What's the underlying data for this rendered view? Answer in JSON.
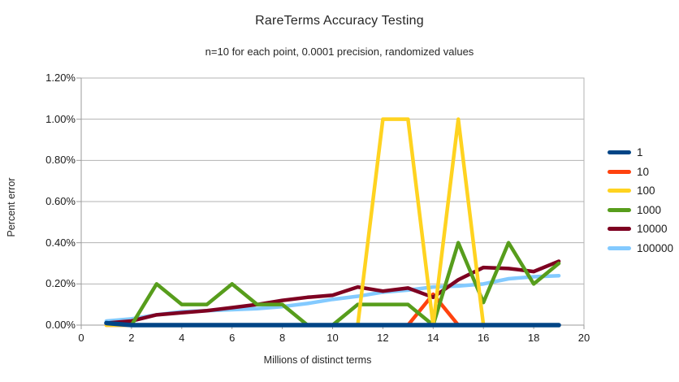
{
  "chart_data": {
    "type": "line",
    "title": "RareTerms Accuracy Testing",
    "subtitle": "n=10 for each point, 0.0001 precision, randomized values",
    "xlabel": "Millions of distinct terms",
    "ylabel": "Percent error",
    "xlim": [
      0,
      20
    ],
    "ylim": [
      0,
      1.2
    ],
    "y_unit": "percent",
    "grid": true,
    "legend_position": "right",
    "x_tick_labels": [
      "0",
      "2",
      "4",
      "6",
      "8",
      "10",
      "12",
      "14",
      "16",
      "18",
      "20"
    ],
    "y_tick_labels": [
      "0.00%",
      "0.20%",
      "0.40%",
      "0.60%",
      "0.80%",
      "1.00%",
      "1.20%"
    ],
    "x": [
      1,
      2,
      3,
      4,
      5,
      6,
      7,
      8,
      9,
      10,
      11,
      12,
      13,
      14,
      15,
      16,
      17,
      18,
      19
    ],
    "series": [
      {
        "name": "1",
        "color": "#004586",
        "values_percent": [
          0.01,
          0,
          0,
          0,
          0,
          0,
          0,
          0,
          0,
          0,
          0,
          0,
          0,
          0,
          0,
          0,
          0,
          0,
          0
        ]
      },
      {
        "name": "10",
        "color": "#FF420E",
        "values_percent": [
          0,
          0,
          0,
          0,
          0,
          0,
          0,
          0,
          0,
          0,
          0,
          0,
          0,
          0.15,
          0,
          0,
          0,
          0,
          0
        ]
      },
      {
        "name": "100",
        "color": "#FFD320",
        "values_percent": [
          0,
          0,
          0,
          0,
          0,
          0,
          0,
          0,
          0,
          0,
          0,
          1.0,
          1.0,
          0,
          1.0,
          0,
          0,
          0,
          0
        ]
      },
      {
        "name": "1000",
        "color": "#579D1C",
        "values_percent": [
          0.01,
          0,
          0.2,
          0.1,
          0.1,
          0.2,
          0.1,
          0.1,
          0,
          0,
          0.1,
          0.1,
          0.1,
          0,
          0.4,
          0.11,
          0.4,
          0.2,
          0.3
        ]
      },
      {
        "name": "10000",
        "color": "#7E0021",
        "values_percent": [
          0.01,
          0.02,
          0.05,
          0.06,
          0.07,
          0.085,
          0.1,
          0.12,
          0.135,
          0.145,
          0.185,
          0.165,
          0.18,
          0.135,
          0.22,
          0.28,
          0.275,
          0.26,
          0.31
        ]
      },
      {
        "name": "100000",
        "color": "#83CAFF",
        "values_percent": [
          0.02,
          0.03,
          0.05,
          0.065,
          0.07,
          0.075,
          0.08,
          0.09,
          0.105,
          0.125,
          0.14,
          0.16,
          0.17,
          0.185,
          0.19,
          0.2,
          0.225,
          0.235,
          0.24
        ]
      }
    ],
    "draw_order": [
      "10",
      "100000",
      "10000",
      "1000",
      "100",
      "1"
    ],
    "grid_color": "#b3b3b3",
    "axis_color": "#9b9b9b"
  }
}
